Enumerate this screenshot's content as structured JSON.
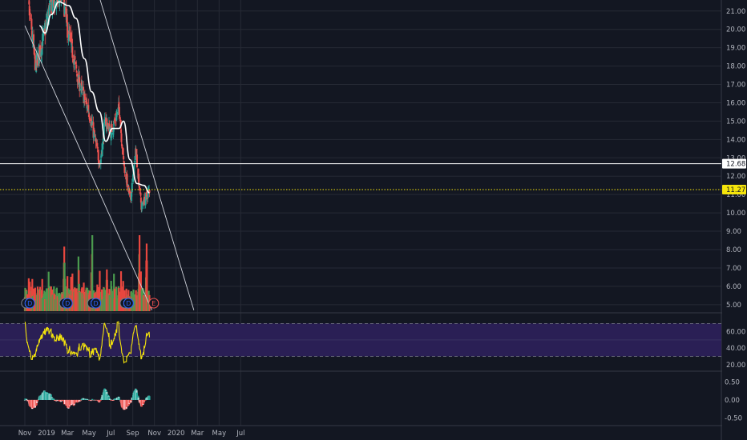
{
  "chart_data": [
    {
      "type": "candlestick",
      "panel": "price",
      "price_ticks": [
        "5.00",
        "6.00",
        "7.00",
        "8.00",
        "9.00",
        "10.00",
        "11.00",
        "12.00",
        "13.00",
        "14.00",
        "15.00",
        "16.00",
        "17.00",
        "18.00",
        "19.00",
        "20.00",
        "21.00"
      ],
      "ylim": [
        4.6,
        21.6
      ],
      "price_tags": [
        {
          "label": "12.68",
          "value": 12.68,
          "color": "#ffffff",
          "text_color": "#131722",
          "line": "solid"
        },
        {
          "label": "11.27",
          "value": 11.27,
          "color": "#f5e50b",
          "text_color": "#131722",
          "line": "dotted"
        }
      ],
      "colors": {
        "up": "#26a69a",
        "down": "#ef5350",
        "ma": "#ffffff",
        "trendline": "#d1d4dc"
      },
      "candles_ohlc_weekly": [
        {
          "t": "2018-11-01",
          "o": 24.0,
          "h": 24.5,
          "l": 22.8,
          "c": 23.0
        },
        {
          "t": "2018-12-01",
          "o": 21.3,
          "h": 21.6,
          "l": 17.2,
          "c": 18.0
        },
        {
          "t": "2018-12-24",
          "o": 17.6,
          "h": 19.9,
          "l": 17.2,
          "c": 19.6
        },
        {
          "t": "2019-01-10",
          "o": 20.3,
          "h": 21.8,
          "l": 19.6,
          "c": 21.2
        },
        {
          "t": "2019-02-15",
          "o": 21.5,
          "h": 22.4,
          "l": 20.9,
          "c": 21.9
        },
        {
          "t": "2019-03-01",
          "o": 21.2,
          "h": 21.4,
          "l": 19.8,
          "c": 20.0
        },
        {
          "t": "2019-04-01",
          "o": 18.7,
          "h": 19.0,
          "l": 16.8,
          "c": 17.2
        },
        {
          "t": "2019-05-01",
          "o": 16.9,
          "h": 17.2,
          "l": 15.2,
          "c": 15.5
        },
        {
          "t": "2019-06-01",
          "o": 14.8,
          "h": 15.0,
          "l": 11.9,
          "c": 12.6
        },
        {
          "t": "2019-06-15",
          "o": 13.5,
          "h": 15.4,
          "l": 13.2,
          "c": 15.1
        },
        {
          "t": "2019-07-01",
          "o": 15.5,
          "h": 15.9,
          "l": 14.2,
          "c": 14.4
        },
        {
          "t": "2019-07-25",
          "o": 14.7,
          "h": 16.0,
          "l": 14.6,
          "c": 15.7
        },
        {
          "t": "2019-08-05",
          "o": 15.0,
          "h": 15.2,
          "l": 12.6,
          "c": 12.9
        },
        {
          "t": "2019-08-25",
          "o": 11.8,
          "h": 12.0,
          "l": 10.3,
          "c": 10.6
        },
        {
          "t": "2019-09-10",
          "o": 12.5,
          "h": 13.8,
          "l": 12.3,
          "c": 13.4
        },
        {
          "t": "2019-09-25",
          "o": 11.4,
          "h": 11.9,
          "l": 10.1,
          "c": 10.3
        },
        {
          "t": "2019-10-18",
          "o": 10.8,
          "h": 11.5,
          "l": 10.4,
          "c": 11.27
        }
      ],
      "moving_average": [
        {
          "t": "2018-12-12",
          "v": 20.2
        },
        {
          "t": "2018-12-28",
          "v": 19.8
        },
        {
          "t": "2019-01-14",
          "v": 20.8
        },
        {
          "t": "2019-02-05",
          "v": 21.5
        },
        {
          "t": "2019-03-04",
          "v": 21.3
        },
        {
          "t": "2019-03-25",
          "v": 20.6
        },
        {
          "t": "2019-04-18",
          "v": 18.4
        },
        {
          "t": "2019-05-08",
          "v": 16.6
        },
        {
          "t": "2019-05-30",
          "v": 15.5
        },
        {
          "t": "2019-06-17",
          "v": 13.9
        },
        {
          "t": "2019-07-06",
          "v": 14.6
        },
        {
          "t": "2019-07-24",
          "v": 14.6
        },
        {
          "t": "2019-08-06",
          "v": 15.0
        },
        {
          "t": "2019-08-24",
          "v": 12.9
        },
        {
          "t": "2019-09-13",
          "v": 11.6
        },
        {
          "t": "2019-10-02",
          "v": 11.5
        },
        {
          "t": "2019-10-18",
          "v": 11.1
        }
      ],
      "trendlines": [
        {
          "t1": "2018-11-01",
          "v1": 20.2,
          "t2": "2019-10-25",
          "v2": 4.7
        },
        {
          "t1": "2019-05-26",
          "v1": 22.0,
          "t2": "2020-02-20",
          "v2": 4.7
        }
      ],
      "earnings_markers": [
        {
          "t": "2018-11-05",
          "label": "E",
          "color": "#787b86"
        },
        {
          "t": "2018-11-15",
          "label": "D",
          "color": "#2962ff"
        },
        {
          "t": "2019-02-20",
          "label": "E",
          "color": "#787b86"
        },
        {
          "t": "2019-03-01",
          "label": "D",
          "color": "#2962ff"
        },
        {
          "t": "2019-05-10",
          "label": "E",
          "color": "#787b86"
        },
        {
          "t": "2019-05-20",
          "label": "D",
          "color": "#2962ff"
        },
        {
          "t": "2019-08-10",
          "label": "E",
          "color": "#787b86"
        },
        {
          "t": "2019-08-20",
          "label": "D",
          "color": "#2962ff"
        },
        {
          "t": "2019-10-30",
          "label": "E",
          "color": "#ef5350"
        }
      ]
    },
    {
      "type": "bar",
      "panel": "volume",
      "description_of_bars": "one bar per trading day; green up day, red down day",
      "volume_peaks": [
        {
          "t": "2019-02-20",
          "value": 0.85
        },
        {
          "t": "2019-04-01",
          "value": 0.72
        },
        {
          "t": "2019-05-10",
          "value": 1.0
        },
        {
          "t": "2019-06-20",
          "value": 0.55
        },
        {
          "t": "2019-09-20",
          "value": 1.0
        },
        {
          "t": "2019-10-10",
          "value": 0.89
        }
      ]
    },
    {
      "type": "line",
      "panel": "rsi",
      "ticks": [
        "20.00",
        "40.00",
        "60.00"
      ],
      "ylim": [
        14,
        82
      ],
      "band": [
        30,
        70
      ],
      "colors": {
        "line": "#f5e50b",
        "band_fill": "#2a1f55",
        "band_border": "#787b86"
      }
    },
    {
      "type": "histogram",
      "panel": "macd",
      "ticks": [
        "-0.50",
        "0.00",
        "0.50"
      ],
      "ylim": [
        -0.62,
        0.75
      ],
      "colors": {
        "pos_strong": "#26a69a",
        "pos_weak": "#b2dfdb",
        "neg_strong": "#ef5350",
        "neg_weak": "#ffcdd2"
      }
    }
  ],
  "x_axis": {
    "labels": [
      {
        "label": "Nov",
        "t": "2018-11-01"
      },
      {
        "label": "2019",
        "t": "2019-01-01"
      },
      {
        "label": "Mar",
        "t": "2019-03-01"
      },
      {
        "label": "May",
        "t": "2019-05-01"
      },
      {
        "label": "Jul",
        "t": "2019-07-01"
      },
      {
        "label": "Sep",
        "t": "2019-09-01"
      },
      {
        "label": "Nov",
        "t": "2019-11-01"
      },
      {
        "label": "2020",
        "t": "2020-01-01"
      },
      {
        "label": "Mar",
        "t": "2020-03-01"
      },
      {
        "label": "May",
        "t": "2020-05-01"
      },
      {
        "label": "Jul",
        "t": "2020-07-01"
      }
    ]
  }
}
